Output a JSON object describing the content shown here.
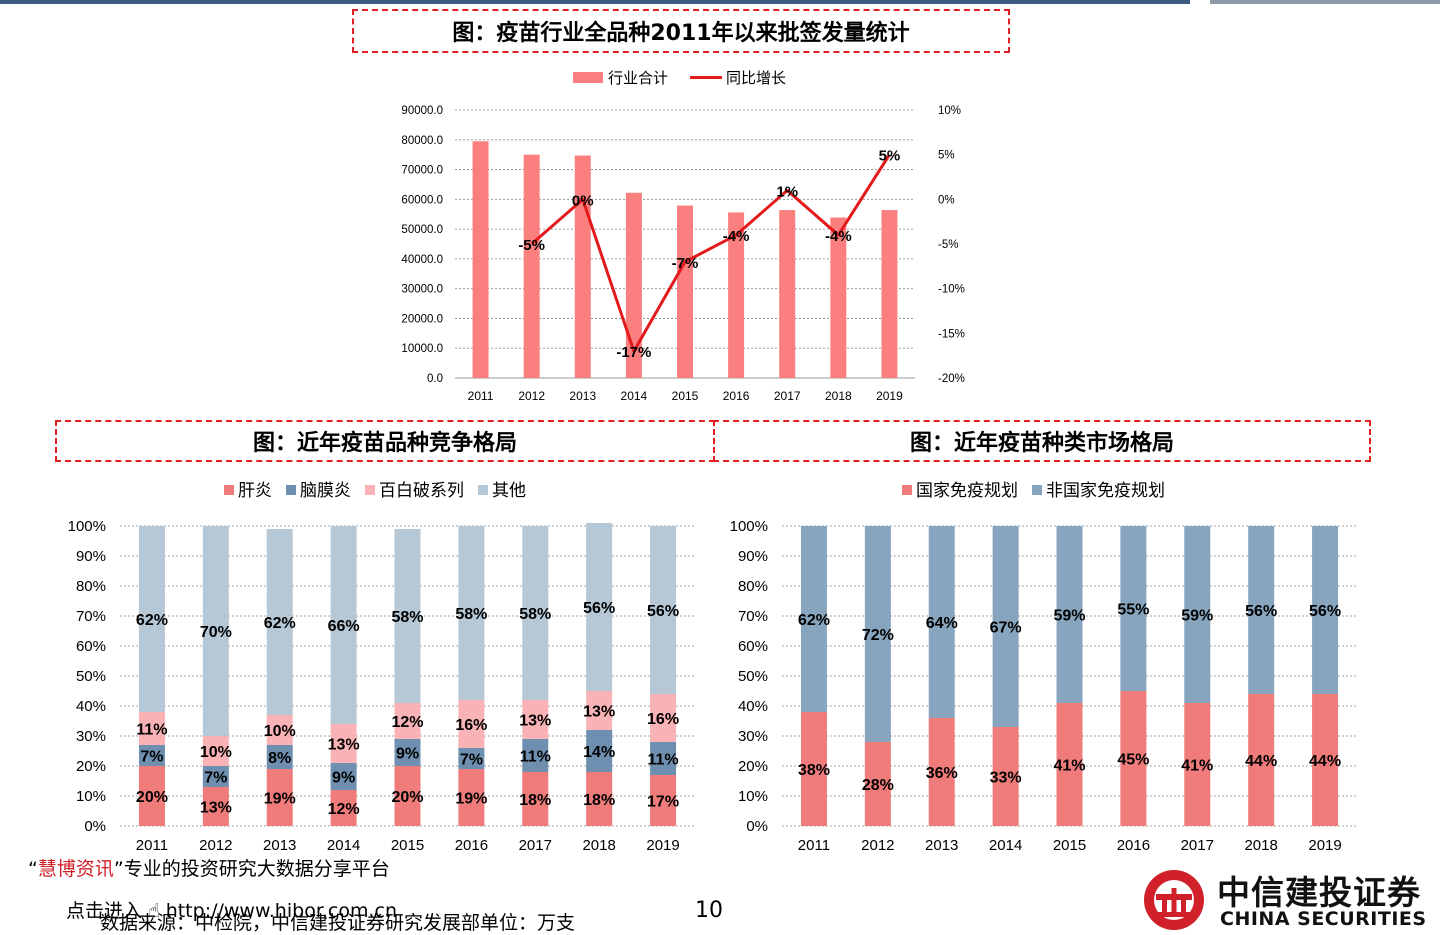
{
  "titles": {
    "top": "图：疫苗行业全品种2011年以来批签发量统计",
    "left": "图：近年疫苗品种竞争格局",
    "right": "图：近年疫苗种类市场格局"
  },
  "footer": {
    "brand_name": "慧博资讯",
    "quote_open": "“",
    "quote_close": "”",
    "slogan": "专业的投资研究大数据分享平台",
    "enter": "点击进入",
    "url": "http://www.hibor.com.cn",
    "source": "数据来源：中检院，中信建投证券研究发展部单位：万支",
    "page_number": "10"
  },
  "logo": {
    "cn": "中信建投证券",
    "en": "CHINA SECURITIES"
  },
  "colors": {
    "bar_total": "#fb7f7f",
    "line_growth": "#e31a1c",
    "hepatitis": "#f07b7b",
    "meningitis": "#6e8fb0",
    "dtp": "#f9b3b6",
    "other": "#b6c8d6",
    "national": "#f07b7b",
    "non_national": "#87a5bf",
    "title_border": "#e02020"
  },
  "chart_data": [
    {
      "type": "bar",
      "title": "图：疫苗行业全品种2011年以来批签发量统计",
      "categories": [
        "2011",
        "2012",
        "2013",
        "2014",
        "2015",
        "2016",
        "2017",
        "2018",
        "2019"
      ],
      "series": [
        {
          "name": "行业合计",
          "type": "bar",
          "axis": "left",
          "values": [
            79500,
            75000,
            74700,
            62200,
            57900,
            55600,
            56400,
            53900,
            56400
          ]
        },
        {
          "name": "同比增长",
          "type": "line",
          "axis": "right",
          "values": [
            null,
            -5,
            0,
            -17,
            -7,
            -4,
            1,
            -4,
            5
          ],
          "labels": [
            "",
            "-5%",
            "0%",
            "-17%",
            "-7%",
            "-4%",
            "1%",
            "-4%",
            "5%"
          ]
        }
      ],
      "y_left": {
        "min": 0,
        "max": 90000,
        "step": 10000,
        "ticks": [
          "0.0",
          "10000.0",
          "20000.0",
          "30000.0",
          "40000.0",
          "50000.0",
          "60000.0",
          "70000.0",
          "80000.0",
          "90000.0"
        ]
      },
      "y_right": {
        "min": -20,
        "max": 10,
        "step": 5,
        "ticks": [
          "-20%",
          "-15%",
          "-10%",
          "-5%",
          "0%",
          "5%",
          "10%"
        ]
      },
      "legend": [
        "行业合计",
        "同比增长"
      ],
      "grid": true
    },
    {
      "type": "bar",
      "stacked": true,
      "title": "图：近年疫苗品种竞争格局",
      "categories": [
        "2011",
        "2012",
        "2013",
        "2014",
        "2015",
        "2016",
        "2017",
        "2018",
        "2019"
      ],
      "series": [
        {
          "name": "肝炎",
          "values": [
            20,
            13,
            19,
            12,
            20,
            19,
            18,
            18,
            17
          ]
        },
        {
          "name": "脑膜炎",
          "values": [
            7,
            7,
            8,
            9,
            9,
            7,
            11,
            14,
            11
          ]
        },
        {
          "name": "百白破系列",
          "values": [
            11,
            10,
            10,
            13,
            12,
            16,
            13,
            13,
            16
          ]
        },
        {
          "name": "其他",
          "values": [
            62,
            70,
            62,
            66,
            58,
            58,
            58,
            56,
            56
          ]
        }
      ],
      "y": {
        "min": 0,
        "max": 100,
        "step": 10,
        "ticks": [
          "0%",
          "10%",
          "20%",
          "30%",
          "40%",
          "50%",
          "60%",
          "70%",
          "80%",
          "90%",
          "100%"
        ]
      },
      "legend": [
        "肝炎",
        "脑膜炎",
        "百白破系列",
        "其他"
      ],
      "grid": true
    },
    {
      "type": "bar",
      "stacked": true,
      "title": "图：近年疫苗种类市场格局",
      "categories": [
        "2011",
        "2012",
        "2013",
        "2014",
        "2015",
        "2016",
        "2017",
        "2018",
        "2019"
      ],
      "series": [
        {
          "name": "国家免疫规划",
          "values": [
            38,
            28,
            36,
            33,
            41,
            45,
            41,
            44,
            44
          ]
        },
        {
          "name": "非国家免疫规划",
          "values": [
            62,
            72,
            64,
            67,
            59,
            55,
            59,
            56,
            56
          ]
        }
      ],
      "y": {
        "min": 0,
        "max": 100,
        "step": 10,
        "ticks": [
          "0%",
          "10%",
          "20%",
          "30%",
          "40%",
          "50%",
          "60%",
          "70%",
          "80%",
          "90%",
          "100%"
        ]
      },
      "legend": [
        "国家免疫规划",
        "非国家免疫规划"
      ],
      "grid": true
    }
  ]
}
